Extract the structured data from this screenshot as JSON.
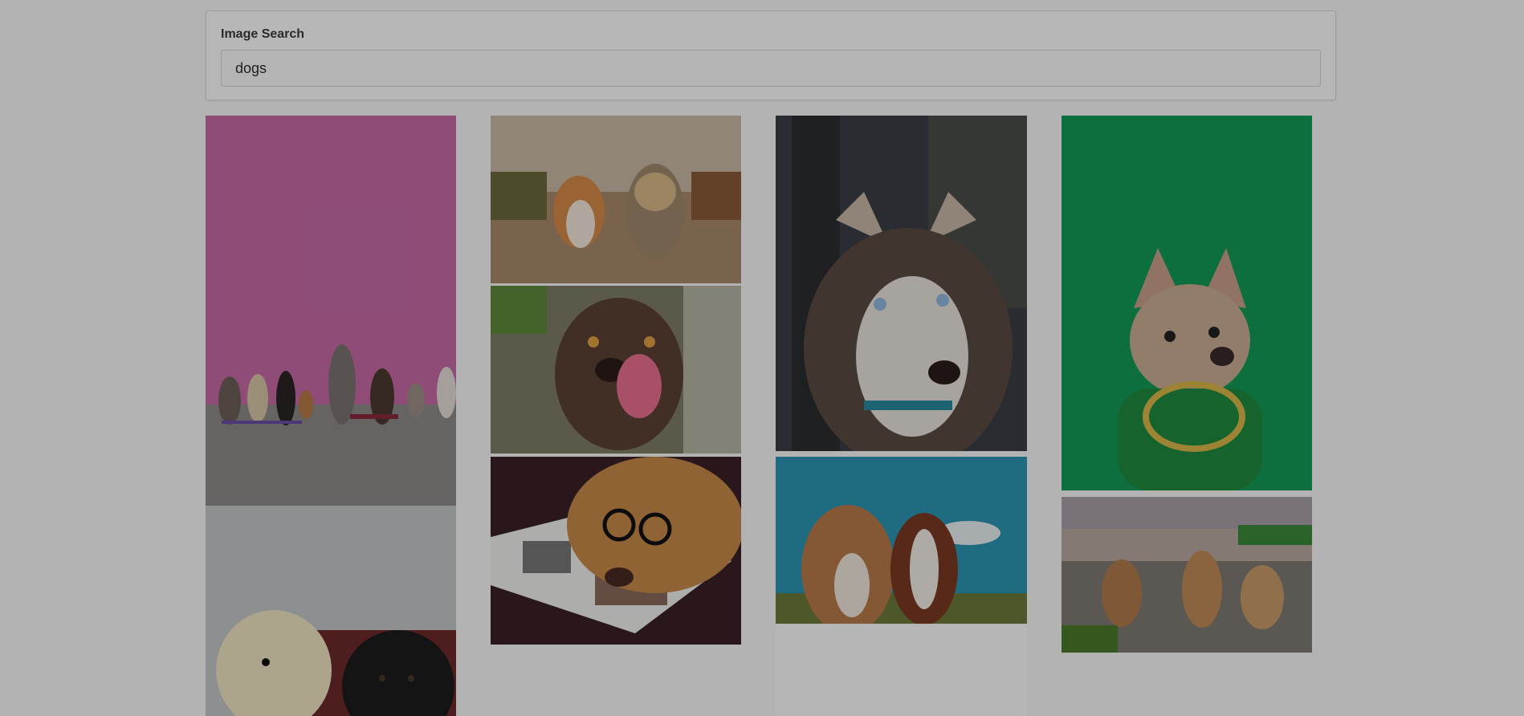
{
  "search": {
    "label": "Image Search",
    "value": "dogs"
  },
  "results": {
    "images": [
      {
        "name": "dogs-against-pink-wall",
        "bg": "#c56aa6"
      },
      {
        "name": "corgi-and-yorkie-running",
        "bg": "#a88a6a"
      },
      {
        "name": "husky-portrait",
        "bg": "#3a3e44"
      },
      {
        "name": "french-bulldog-gold-chain",
        "bg": "#139a55"
      },
      {
        "name": "brown-dog-licking",
        "bg": "#6d7455"
      },
      {
        "name": "dog-with-glasses-magazine",
        "bg": "#3a2128"
      },
      {
        "name": "two-dogs-looking-up-sky",
        "bg": "#2a95b5"
      },
      {
        "name": "three-puppies-gravel",
        "bg": "#7f7a74"
      },
      {
        "name": "golden-doodle-and-black-lab",
        "bg": "#c4c8c8"
      }
    ]
  }
}
